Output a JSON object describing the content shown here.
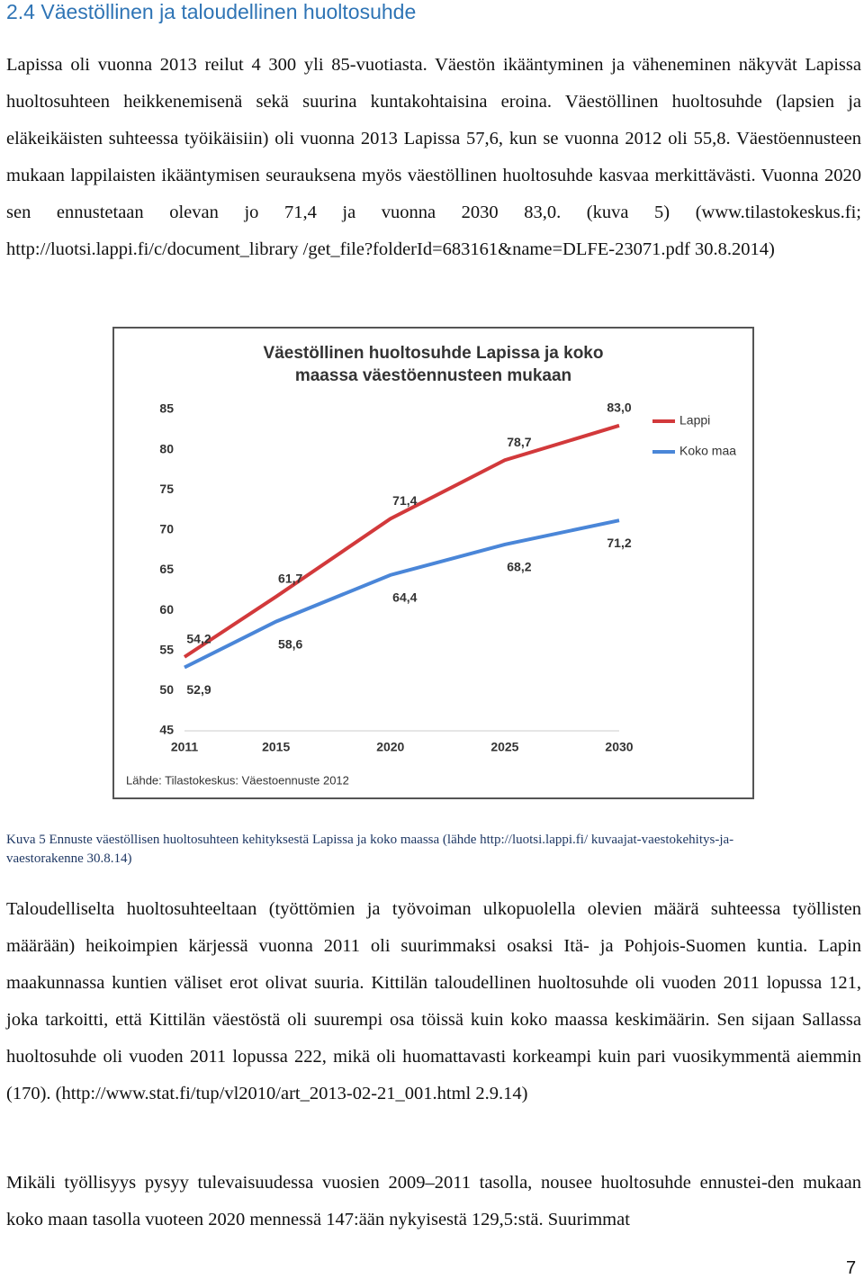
{
  "heading": {
    "title": "2.4 Väestöllinen ja taloudellinen huoltosuhde"
  },
  "paragraphs": [
    "Lapissa oli vuonna 2013 reilut 4 300 yli 85-vuotiasta. Väestön ikääntyminen ja väheneminen näkyvät Lapissa huoltosuhteen heikkenemisenä sekä suurina kuntakohtaisina eroina. Väestöllinen huoltosuhde (lapsien ja eläkeikäisten suhteessa työikäisiin) oli vuonna 2013 Lapissa 57,6, kun se vuonna 2012 oli 55,8. Väestöennusteen mukaan lappilaisten ikääntymisen seurauksena myös väestöllinen huoltosuhde kasvaa merkittävästi. Vuonna 2020 sen ennustetaan olevan jo 71,4 ja vuonna 2030 83,0. (kuva 5) (www.tilastokeskus.fi; http://luotsi.lappi.fi/c/document_library /get_file?folderId=683161&name=DLFE-23071.pdf 30.8.2014)",
    "Taloudelliselta huoltosuhteeltaan (työttömien ja työvoiman ulkopuolella olevien määrä suhteessa työllisten määrään) heikoimpien kärjessä vuonna 2011 oli suurimmaksi osaksi Itä- ja Pohjois-Suomen kuntia. Lapin maakunnassa kuntien väliset erot olivat suuria. Kittilän taloudellinen huoltosuhde oli vuoden 2011 lopussa 121, joka tarkoitti, että Kittilän väestöstä oli suurempi osa töissä kuin koko maassa keskimäärin. Sen sijaan Sallassa huoltosuhde oli vuoden 2011 lopussa 222, mikä oli huomattavasti korkeampi kuin pari vuosikymmentä aiemmin (170). (http://www.stat.fi/tup/vl2010/art_2013-02-21_001.html 2.9.14)",
    "Mikäli työllisyys pysyy tulevaisuudessa vuosien 2009–2011 tasolla, nousee huoltosuhde ennustei-den mukaan koko maan tasolla vuoteen 2020 mennessä 147:ään nykyisestä 129,5:stä. Suurimmat"
  ],
  "figure": {
    "caption": "Kuva 5 Ennuste väestöllisen huoltosuhteen kehityksestä Lapissa ja koko maassa (lähde http://luotsi.lappi.fi/ kuvaajat-vaestokehitys-ja-vaestorakenne 30.8.14)"
  },
  "page_number": 7,
  "chart_data": {
    "type": "line",
    "title": "Väestöllinen huoltosuhde Lapissa ja koko maassa väestöennusteen mukaan",
    "source": "Lähde: Tilastokeskus: Väestoennuste 2012",
    "x": [
      2011,
      2015,
      2020,
      2025,
      2030
    ],
    "xticks": [
      2011,
      2015,
      2020,
      2025,
      2030
    ],
    "xlim": [
      2011,
      2030
    ],
    "ylim": [
      45,
      85
    ],
    "yticks": [
      45,
      50,
      55,
      60,
      65,
      70,
      75,
      80,
      85
    ],
    "grid": false,
    "legend": "right",
    "series": [
      {
        "name": "Lappi",
        "color": "#d2393b",
        "values": [
          54.2,
          61.7,
          71.4,
          78.7,
          83.0
        ],
        "value_labels": [
          "54,2",
          "61,7",
          "71,4",
          "78,7",
          "83,0"
        ]
      },
      {
        "name": "Koko maa",
        "color": "#4a86d8",
        "values": [
          52.9,
          58.6,
          64.4,
          68.2,
          71.2
        ],
        "value_labels": [
          "52,9",
          "58,6",
          "64,4",
          "68,2",
          "71,2"
        ]
      }
    ]
  }
}
